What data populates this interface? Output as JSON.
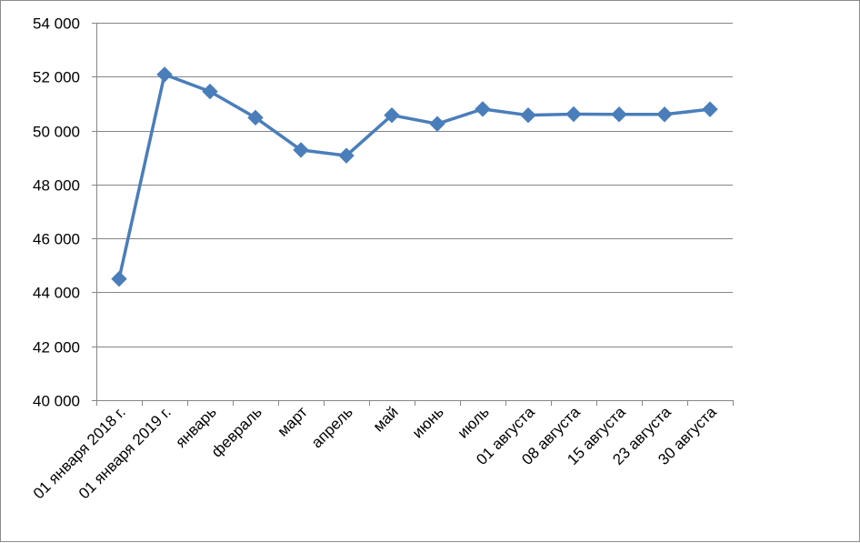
{
  "chart_data": {
    "type": "line",
    "title": "",
    "xlabel": "",
    "ylabel": "",
    "ylim": [
      40000,
      54000
    ],
    "yticks": [
      40000,
      42000,
      44000,
      46000,
      48000,
      50000,
      52000,
      54000
    ],
    "ytick_labels": [
      "40 000",
      "42 000",
      "44 000",
      "46 000",
      "48 000",
      "50 000",
      "52 000",
      "54 000"
    ],
    "grid": true,
    "legend": "none",
    "categories": [
      "01 января 2018 г.",
      "01 января 2019 г.",
      "январь",
      "февраль",
      "март",
      "апрель",
      "май",
      "июнь",
      "июль",
      "01 августа",
      "08 августа",
      "15 августа",
      "23 августа",
      "30 августа"
    ],
    "series": [
      {
        "color": "#4a7ebb",
        "marker": "diamond",
        "values": [
          44500,
          52080,
          51450,
          50480,
          49280,
          49070,
          50570,
          50250,
          50800,
          50570,
          50610,
          50600,
          50600,
          50790
        ]
      }
    ]
  }
}
